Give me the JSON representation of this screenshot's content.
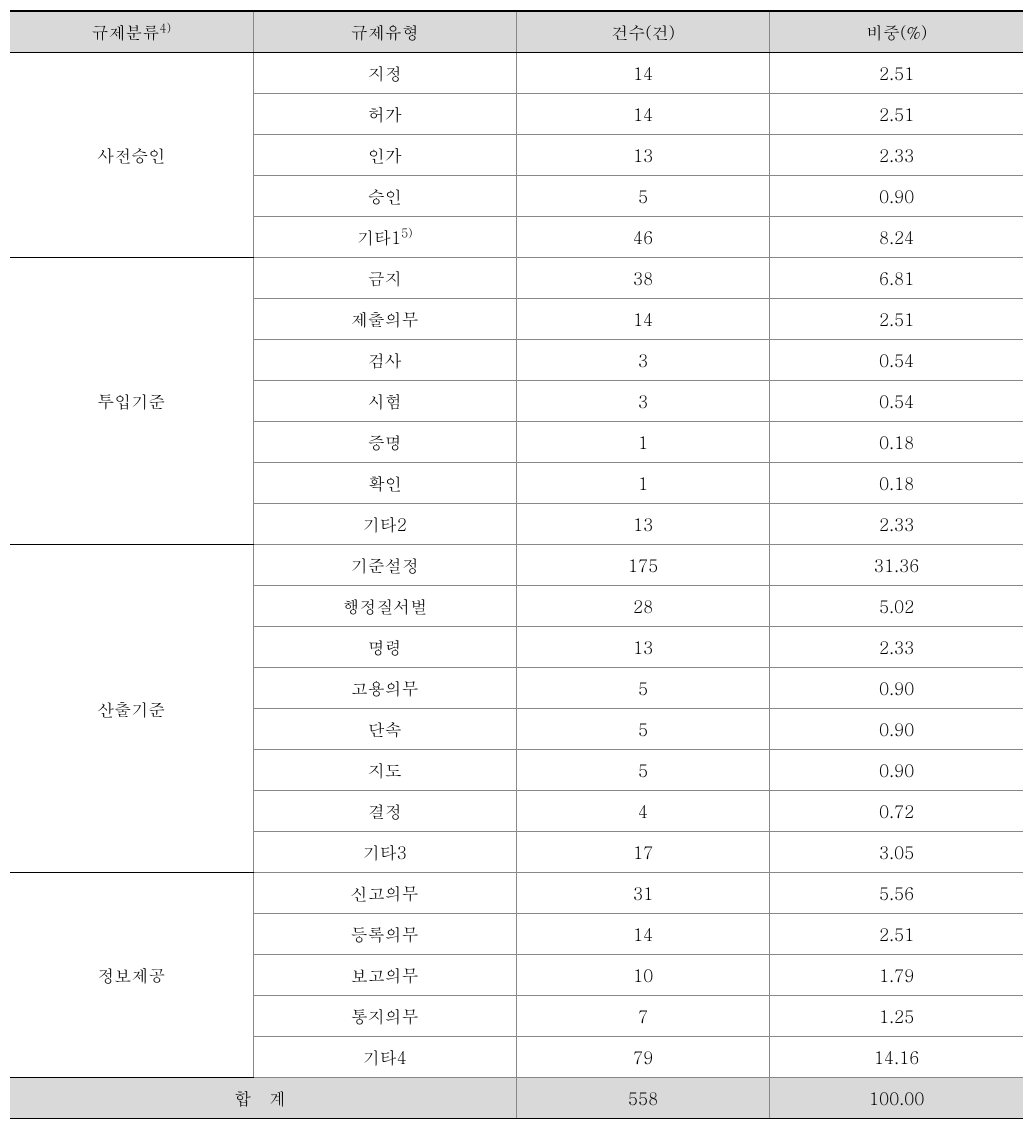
{
  "header": {
    "category": "규제분류",
    "category_note": "4)",
    "type": "규제유형",
    "count": "건수(건)",
    "percent": "비중(%)"
  },
  "groups": [
    {
      "name": "사전승인",
      "rows": [
        {
          "type": "지정",
          "count": "14",
          "percent": "2.51"
        },
        {
          "type": "허가",
          "count": "14",
          "percent": "2.51"
        },
        {
          "type": "인가",
          "count": "13",
          "percent": "2.33"
        },
        {
          "type": "승인",
          "count": "5",
          "percent": "0.90"
        },
        {
          "type": "기타1",
          "type_note": "5)",
          "count": "46",
          "percent": "8.24"
        }
      ]
    },
    {
      "name": "투입기준",
      "rows": [
        {
          "type": "금지",
          "count": "38",
          "percent": "6.81"
        },
        {
          "type": "제출의무",
          "count": "14",
          "percent": "2.51"
        },
        {
          "type": "검사",
          "count": "3",
          "percent": "0.54"
        },
        {
          "type": "시험",
          "count": "3",
          "percent": "0.54"
        },
        {
          "type": "증명",
          "count": "1",
          "percent": "0.18"
        },
        {
          "type": "확인",
          "count": "1",
          "percent": "0.18"
        },
        {
          "type": "기타2",
          "count": "13",
          "percent": "2.33"
        }
      ]
    },
    {
      "name": "산출기준",
      "rows": [
        {
          "type": "기준설정",
          "count": "175",
          "percent": "31.36"
        },
        {
          "type": "행정질서벌",
          "count": "28",
          "percent": "5.02"
        },
        {
          "type": "명령",
          "count": "13",
          "percent": "2.33"
        },
        {
          "type": "고용의무",
          "count": "5",
          "percent": "0.90"
        },
        {
          "type": "단속",
          "count": "5",
          "percent": "0.90"
        },
        {
          "type": "지도",
          "count": "5",
          "percent": "0.90"
        },
        {
          "type": "결정",
          "count": "4",
          "percent": "0.72"
        },
        {
          "type": "기타3",
          "count": "17",
          "percent": "3.05"
        }
      ]
    },
    {
      "name": "정보제공",
      "rows": [
        {
          "type": "신고의무",
          "count": "31",
          "percent": "5.56"
        },
        {
          "type": "등록의무",
          "count": "14",
          "percent": "2.51"
        },
        {
          "type": "보고의무",
          "count": "10",
          "percent": "1.79"
        },
        {
          "type": "통지의무",
          "count": "7",
          "percent": "1.25"
        },
        {
          "type": "기타4",
          "count": "79",
          "percent": "14.16"
        }
      ]
    }
  ],
  "total": {
    "label": "합 계",
    "count": "558",
    "percent": "100.00"
  },
  "style": {
    "header_bg": "#d9d9d9",
    "total_bg": "#d9d9d9",
    "border_light": "#888888",
    "border_dark": "#000000",
    "background": "#ffffff",
    "font_size": 17
  }
}
